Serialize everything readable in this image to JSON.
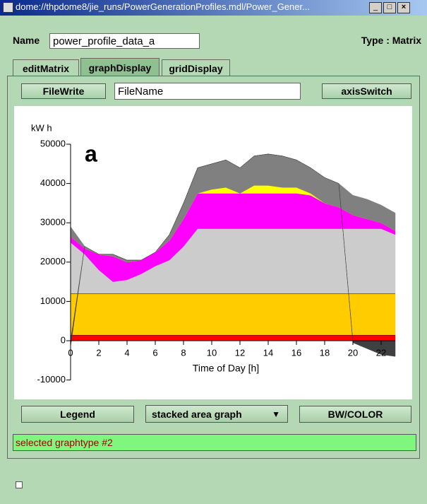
{
  "window": {
    "title": "dome://thpdome8/jie_runs/PowerGenerationProfiles.mdl/Power_Gener...",
    "name_label": "Name",
    "name_value": "power_profile_data_a",
    "type_label": "Type : Matrix",
    "tabs": [
      "editMatrix",
      "graphDisplay",
      "gridDisplay"
    ],
    "buttons": {
      "file_write": "FileWrite",
      "file_name": "FileName",
      "axis_switch": "axisSwitch",
      "legend": "Legend",
      "graph_type": "stacked area graph",
      "bw_color": "BW/COLOR"
    },
    "status": "selected graphtype #2"
  },
  "chart_data": {
    "type": "stacked_area",
    "title": "a",
    "ylabel": "kW h",
    "xlabel": "Time of Day [h]",
    "x": [
      0,
      1,
      2,
      3,
      4,
      5,
      6,
      7,
      8,
      9,
      10,
      11,
      12,
      13,
      14,
      15,
      16,
      17,
      18,
      19,
      20,
      21,
      22,
      23
    ],
    "xlim": [
      0,
      23
    ],
    "xticks": [
      0,
      2,
      4,
      6,
      8,
      10,
      12,
      14,
      16,
      18,
      20,
      22
    ],
    "ylim": [
      -10000,
      50000
    ],
    "yticks": [
      -10000,
      0,
      10000,
      20000,
      30000,
      40000,
      50000
    ],
    "series": [
      {
        "color": "#ff0000",
        "edge_color": "#000000",
        "values": [
          1500,
          1500,
          1500,
          1500,
          1500,
          1500,
          1500,
          1500,
          1500,
          1500,
          1500,
          1500,
          1500,
          1500,
          1500,
          1500,
          1500,
          1500,
          1500,
          1500,
          1500,
          1500,
          1500,
          1500
        ]
      },
      {
        "color": "#ffcc00",
        "edge_color": "#000000",
        "values": [
          10500,
          10500,
          10500,
          10500,
          10500,
          10500,
          10500,
          10500,
          10500,
          10500,
          10500,
          10500,
          10500,
          10500,
          10500,
          10500,
          10500,
          10500,
          10500,
          10500,
          10500,
          10500,
          10500,
          10500
        ]
      },
      {
        "color": "#cccccc",
        "values": [
          13000,
          10000,
          6000,
          3000,
          3500,
          5000,
          7000,
          8500,
          12000,
          16500,
          16500,
          16500,
          16500,
          16500,
          16500,
          16500,
          16500,
          16500,
          16500,
          16500,
          16500,
          16500,
          16500,
          15000
        ]
      },
      {
        "color": "#ff00ff",
        "values": [
          1500,
          1500,
          4000,
          6500,
          4500,
          3500,
          3500,
          5000,
          7000,
          9000,
          9000,
          9000,
          9000,
          9000,
          9000,
          9000,
          9000,
          8500,
          6500,
          5500,
          3500,
          2500,
          1500,
          1000
        ]
      },
      {
        "color": "#ffff00",
        "values": [
          0,
          0,
          0,
          0,
          0,
          0,
          0,
          0,
          0,
          0,
          1000,
          1500,
          0,
          2000,
          2000,
          1500,
          1500,
          500,
          0,
          0,
          0,
          0,
          0,
          0
        ]
      },
      {
        "color": "#808080",
        "values": [
          2500,
          500,
          0,
          500,
          500,
          0,
          0,
          1500,
          4000,
          6500,
          6500,
          7000,
          6500,
          7500,
          8000,
          8000,
          7000,
          6500,
          6500,
          6000,
          5000,
          5000,
          4500,
          4500
        ]
      },
      {
        "color": "#404040",
        "values": [
          -1500,
          0,
          0,
          0,
          0,
          0,
          0,
          0,
          0,
          0,
          0,
          0,
          0,
          0,
          0,
          0,
          0,
          0,
          0,
          0,
          -500,
          -2000,
          -3500,
          -4000
        ]
      }
    ]
  }
}
